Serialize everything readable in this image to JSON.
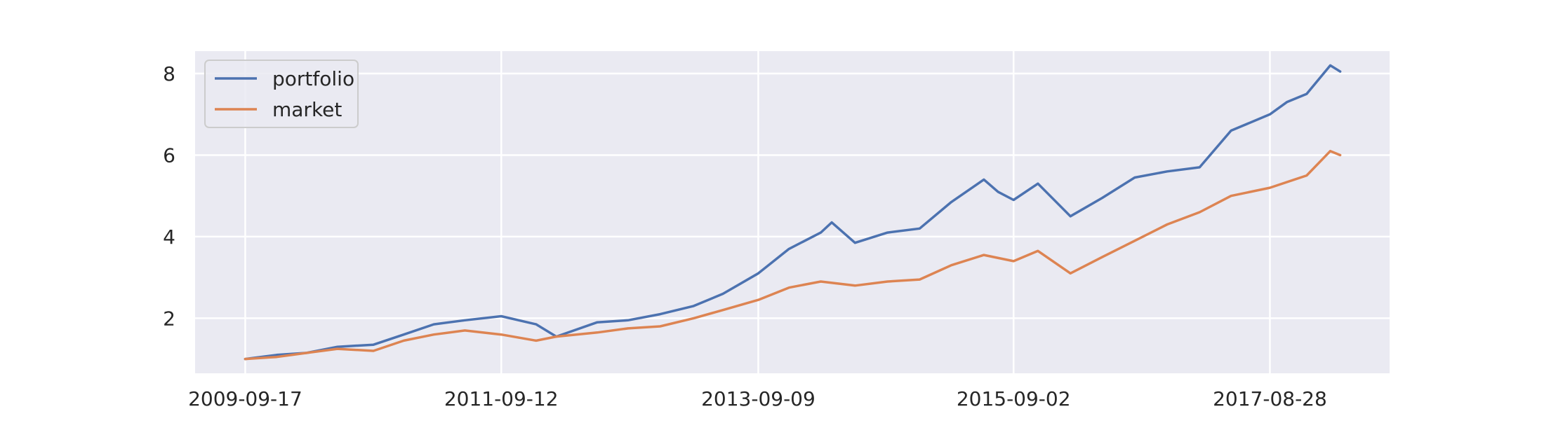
{
  "chart_data": {
    "type": "line",
    "title": "",
    "xlabel": "",
    "ylabel": "",
    "x_ticks": [
      "2009-09-17",
      "2011-09-12",
      "2013-09-09",
      "2015-09-02",
      "2017-08-28"
    ],
    "y_ticks": [
      2,
      4,
      6,
      8
    ],
    "xlim": [
      "2009-04-28",
      "2018-08-02"
    ],
    "ylim": [
      0.65,
      8.55
    ],
    "grid": true,
    "legend_position": "top-left",
    "background_color": "#eaeaf2",
    "grid_color": "#ffffff",
    "series": [
      {
        "name": "portfolio",
        "color": "#4c72b0",
        "x": [
          "2009-09-17",
          "2009-12-15",
          "2010-03-10",
          "2010-06-05",
          "2010-09-15",
          "2010-12-10",
          "2011-03-05",
          "2011-06-01",
          "2011-09-12",
          "2011-12-20",
          "2012-02-15",
          "2012-06-10",
          "2012-09-05",
          "2012-12-05",
          "2013-03-10",
          "2013-06-01",
          "2013-09-09",
          "2013-12-05",
          "2014-03-05",
          "2014-04-05",
          "2014-06-10",
          "2014-09-10",
          "2014-12-10",
          "2015-03-10",
          "2015-06-10",
          "2015-07-20",
          "2015-09-02",
          "2015-11-10",
          "2016-02-10",
          "2016-05-10",
          "2016-08-10",
          "2016-11-10",
          "2017-02-10",
          "2017-05-10",
          "2017-08-28",
          "2017-10-15",
          "2017-12-10",
          "2018-02-15",
          "2018-03-15"
        ],
        "values": [
          1.0,
          1.1,
          1.15,
          1.3,
          1.35,
          1.6,
          1.85,
          1.95,
          2.05,
          1.85,
          1.55,
          1.9,
          1.95,
          2.1,
          2.3,
          2.6,
          3.1,
          3.7,
          4.1,
          4.35,
          3.85,
          4.1,
          4.2,
          4.85,
          5.4,
          5.1,
          4.9,
          5.3,
          4.5,
          4.95,
          5.45,
          5.6,
          5.7,
          6.6,
          7.0,
          7.3,
          7.5,
          8.2,
          8.05
        ]
      },
      {
        "name": "market",
        "color": "#dd8452",
        "x": [
          "2009-09-17",
          "2009-12-15",
          "2010-03-10",
          "2010-06-05",
          "2010-09-15",
          "2010-12-10",
          "2011-03-05",
          "2011-06-01",
          "2011-09-12",
          "2011-12-20",
          "2012-02-15",
          "2012-06-10",
          "2012-09-05",
          "2012-12-05",
          "2013-03-10",
          "2013-06-01",
          "2013-09-09",
          "2013-12-05",
          "2014-03-05",
          "2014-06-10",
          "2014-09-10",
          "2014-12-10",
          "2015-03-10",
          "2015-06-10",
          "2015-09-02",
          "2015-11-10",
          "2016-02-10",
          "2016-05-10",
          "2016-08-10",
          "2016-11-10",
          "2017-02-10",
          "2017-05-10",
          "2017-08-28",
          "2017-12-10",
          "2018-02-15",
          "2018-03-15"
        ],
        "values": [
          1.0,
          1.05,
          1.15,
          1.25,
          1.2,
          1.45,
          1.6,
          1.7,
          1.6,
          1.45,
          1.55,
          1.65,
          1.75,
          1.8,
          2.0,
          2.2,
          2.45,
          2.75,
          2.9,
          2.8,
          2.9,
          2.95,
          3.3,
          3.55,
          3.4,
          3.65,
          3.1,
          3.5,
          3.9,
          4.3,
          4.6,
          5.0,
          5.2,
          5.5,
          6.1,
          6.0
        ]
      }
    ]
  }
}
